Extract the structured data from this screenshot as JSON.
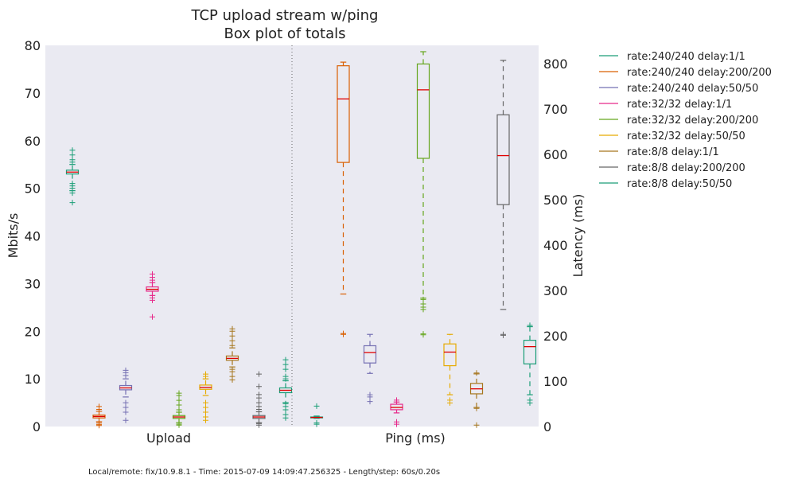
{
  "chart_data": {
    "type": "box",
    "title": "TCP upload stream w/ping",
    "subtitle": "Box plot of totals",
    "categories": [
      "Upload",
      "Ping (ms)"
    ],
    "ylabel_left": "Mbits/s",
    "ylabel_right": "Latency (ms)",
    "ylim_left": [
      0,
      80
    ],
    "ylim_right": [
      0,
      840
    ],
    "yticks_left": [
      0,
      10,
      20,
      30,
      40,
      50,
      60,
      70,
      80
    ],
    "yticks_right": [
      0,
      100,
      200,
      300,
      400,
      500,
      600,
      700,
      800
    ],
    "legend_position": "right, outside plot",
    "footer": "Local/remote: fix/10.9.8.1 - Time: 2015-07-09 14:09:47.256325 - Length/step: 60s/0.20s",
    "series": [
      {
        "name": "rate:240/240 delay:1/1",
        "color": "#1b9e77",
        "upload": {
          "whislo": 49.5,
          "q1": 53.0,
          "med": 53.4,
          "q3": 53.8,
          "whishi": 55.0,
          "fliers": [
            47,
            49,
            50,
            50.5,
            51,
            55.5,
            56,
            57,
            58
          ]
        },
        "ping": {
          "whislo": 18,
          "q1": 19,
          "med": 20,
          "q3": 21,
          "whishi": 23,
          "fliers": [
            5,
            8,
            45
          ]
        }
      },
      {
        "name": "rate:240/240 delay:200/200",
        "color": "#d95f02",
        "upload": {
          "whislo": 1.0,
          "q1": 1.8,
          "med": 2.1,
          "q3": 2.4,
          "whishi": 3.2,
          "fliers": [
            0.2,
            0.4,
            0.7,
            3.6,
            4.2
          ]
        },
        "ping": {
          "whislo": 292,
          "q1": 582,
          "med": 722,
          "q3": 795,
          "whishi": 803,
          "fliers": [
            203,
            205
          ]
        }
      },
      {
        "name": "rate:240/240 delay:50/50",
        "color": "#7570b3",
        "upload": {
          "whislo": 6.2,
          "q1": 7.7,
          "med": 8.1,
          "q3": 8.6,
          "whishi": 10.0,
          "fliers": [
            1.3,
            3,
            4,
            5,
            10.7,
            11.3,
            11.8
          ]
        },
        "ping": {
          "whislo": 117,
          "q1": 140,
          "med": 163,
          "q3": 178,
          "whishi": 203,
          "fliers": [
            55,
            65,
            70
          ]
        }
      },
      {
        "name": "rate:32/32 delay:1/1",
        "color": "#e7298a",
        "upload": {
          "whislo": 27.5,
          "q1": 28.4,
          "med": 28.8,
          "q3": 29.3,
          "whishi": 30.2,
          "fliers": [
            23,
            26.5,
            27,
            30.7,
            31.3,
            32
          ]
        },
        "ping": {
          "whislo": 30,
          "q1": 37,
          "med": 42,
          "q3": 49,
          "whishi": 54,
          "fliers": [
            5,
            10,
            58
          ]
        }
      },
      {
        "name": "rate:32/32 delay:200/200",
        "color": "#66a61e",
        "upload": {
          "whislo": 0.8,
          "q1": 1.7,
          "med": 2.0,
          "q3": 2.3,
          "whishi": 3.0,
          "fliers": [
            0.3,
            0.5,
            3.5,
            4.5,
            5.5,
            6.5,
            7.0
          ]
        },
        "ping": {
          "whislo": 283,
          "q1": 591,
          "med": 742,
          "q3": 799,
          "whishi": 826,
          "fliers": [
            202,
            204,
            258,
            263,
            270,
            280
          ]
        }
      },
      {
        "name": "rate:32/32 delay:50/50",
        "color": "#e6ab02",
        "upload": {
          "whislo": 6.5,
          "q1": 7.8,
          "med": 8.2,
          "q3": 8.7,
          "whishi": 10.0,
          "fliers": [
            1.3,
            2,
            3,
            4,
            5,
            10.5,
            11
          ]
        },
        "ping": {
          "whislo": 70,
          "q1": 134,
          "med": 164,
          "q3": 182,
          "whishi": 203,
          "fliers": [
            52,
            58
          ]
        }
      },
      {
        "name": "rate:8/8 delay:1/1",
        "color": "#a6761d",
        "upload": {
          "whislo": 12.5,
          "q1": 13.9,
          "med": 14.3,
          "q3": 14.8,
          "whishi": 16.5,
          "fliers": [
            9.8,
            10.5,
            11.5,
            12,
            17,
            18,
            19,
            20,
            20.5
          ]
        },
        "ping": {
          "whislo": 42,
          "q1": 72,
          "med": 83,
          "q3": 95,
          "whishi": 116,
          "fliers": [
            3,
            40,
            118
          ]
        }
      },
      {
        "name": "rate:8/8 delay:200/200",
        "color": "#666666",
        "upload": {
          "whislo": 0.8,
          "q1": 1.7,
          "med": 2.0,
          "q3": 2.3,
          "whishi": 3.1,
          "fliers": [
            0.3,
            0.6,
            3.6,
            4.2,
            5,
            6,
            6.7,
            8.4,
            11
          ]
        },
        "ping": {
          "whislo": 258,
          "q1": 489,
          "med": 597,
          "q3": 687,
          "whishi": 807,
          "fliers": [
            201,
            203
          ]
        }
      },
      {
        "name": "rate:8/8 delay:50/50",
        "color": "#1b9e77",
        "upload": {
          "whislo": 5.0,
          "q1": 7.1,
          "med": 7.6,
          "q3": 8.1,
          "whishi": 9.6,
          "fliers": [
            1.8,
            2.5,
            3.5,
            4.2,
            4.8,
            10,
            10.5,
            12,
            13,
            14
          ]
        },
        "ping": {
          "whislo": 70,
          "q1": 138,
          "med": 176,
          "q3": 190,
          "whishi": 220,
          "fliers": [
            52,
            58,
            223
          ]
        }
      }
    ]
  }
}
